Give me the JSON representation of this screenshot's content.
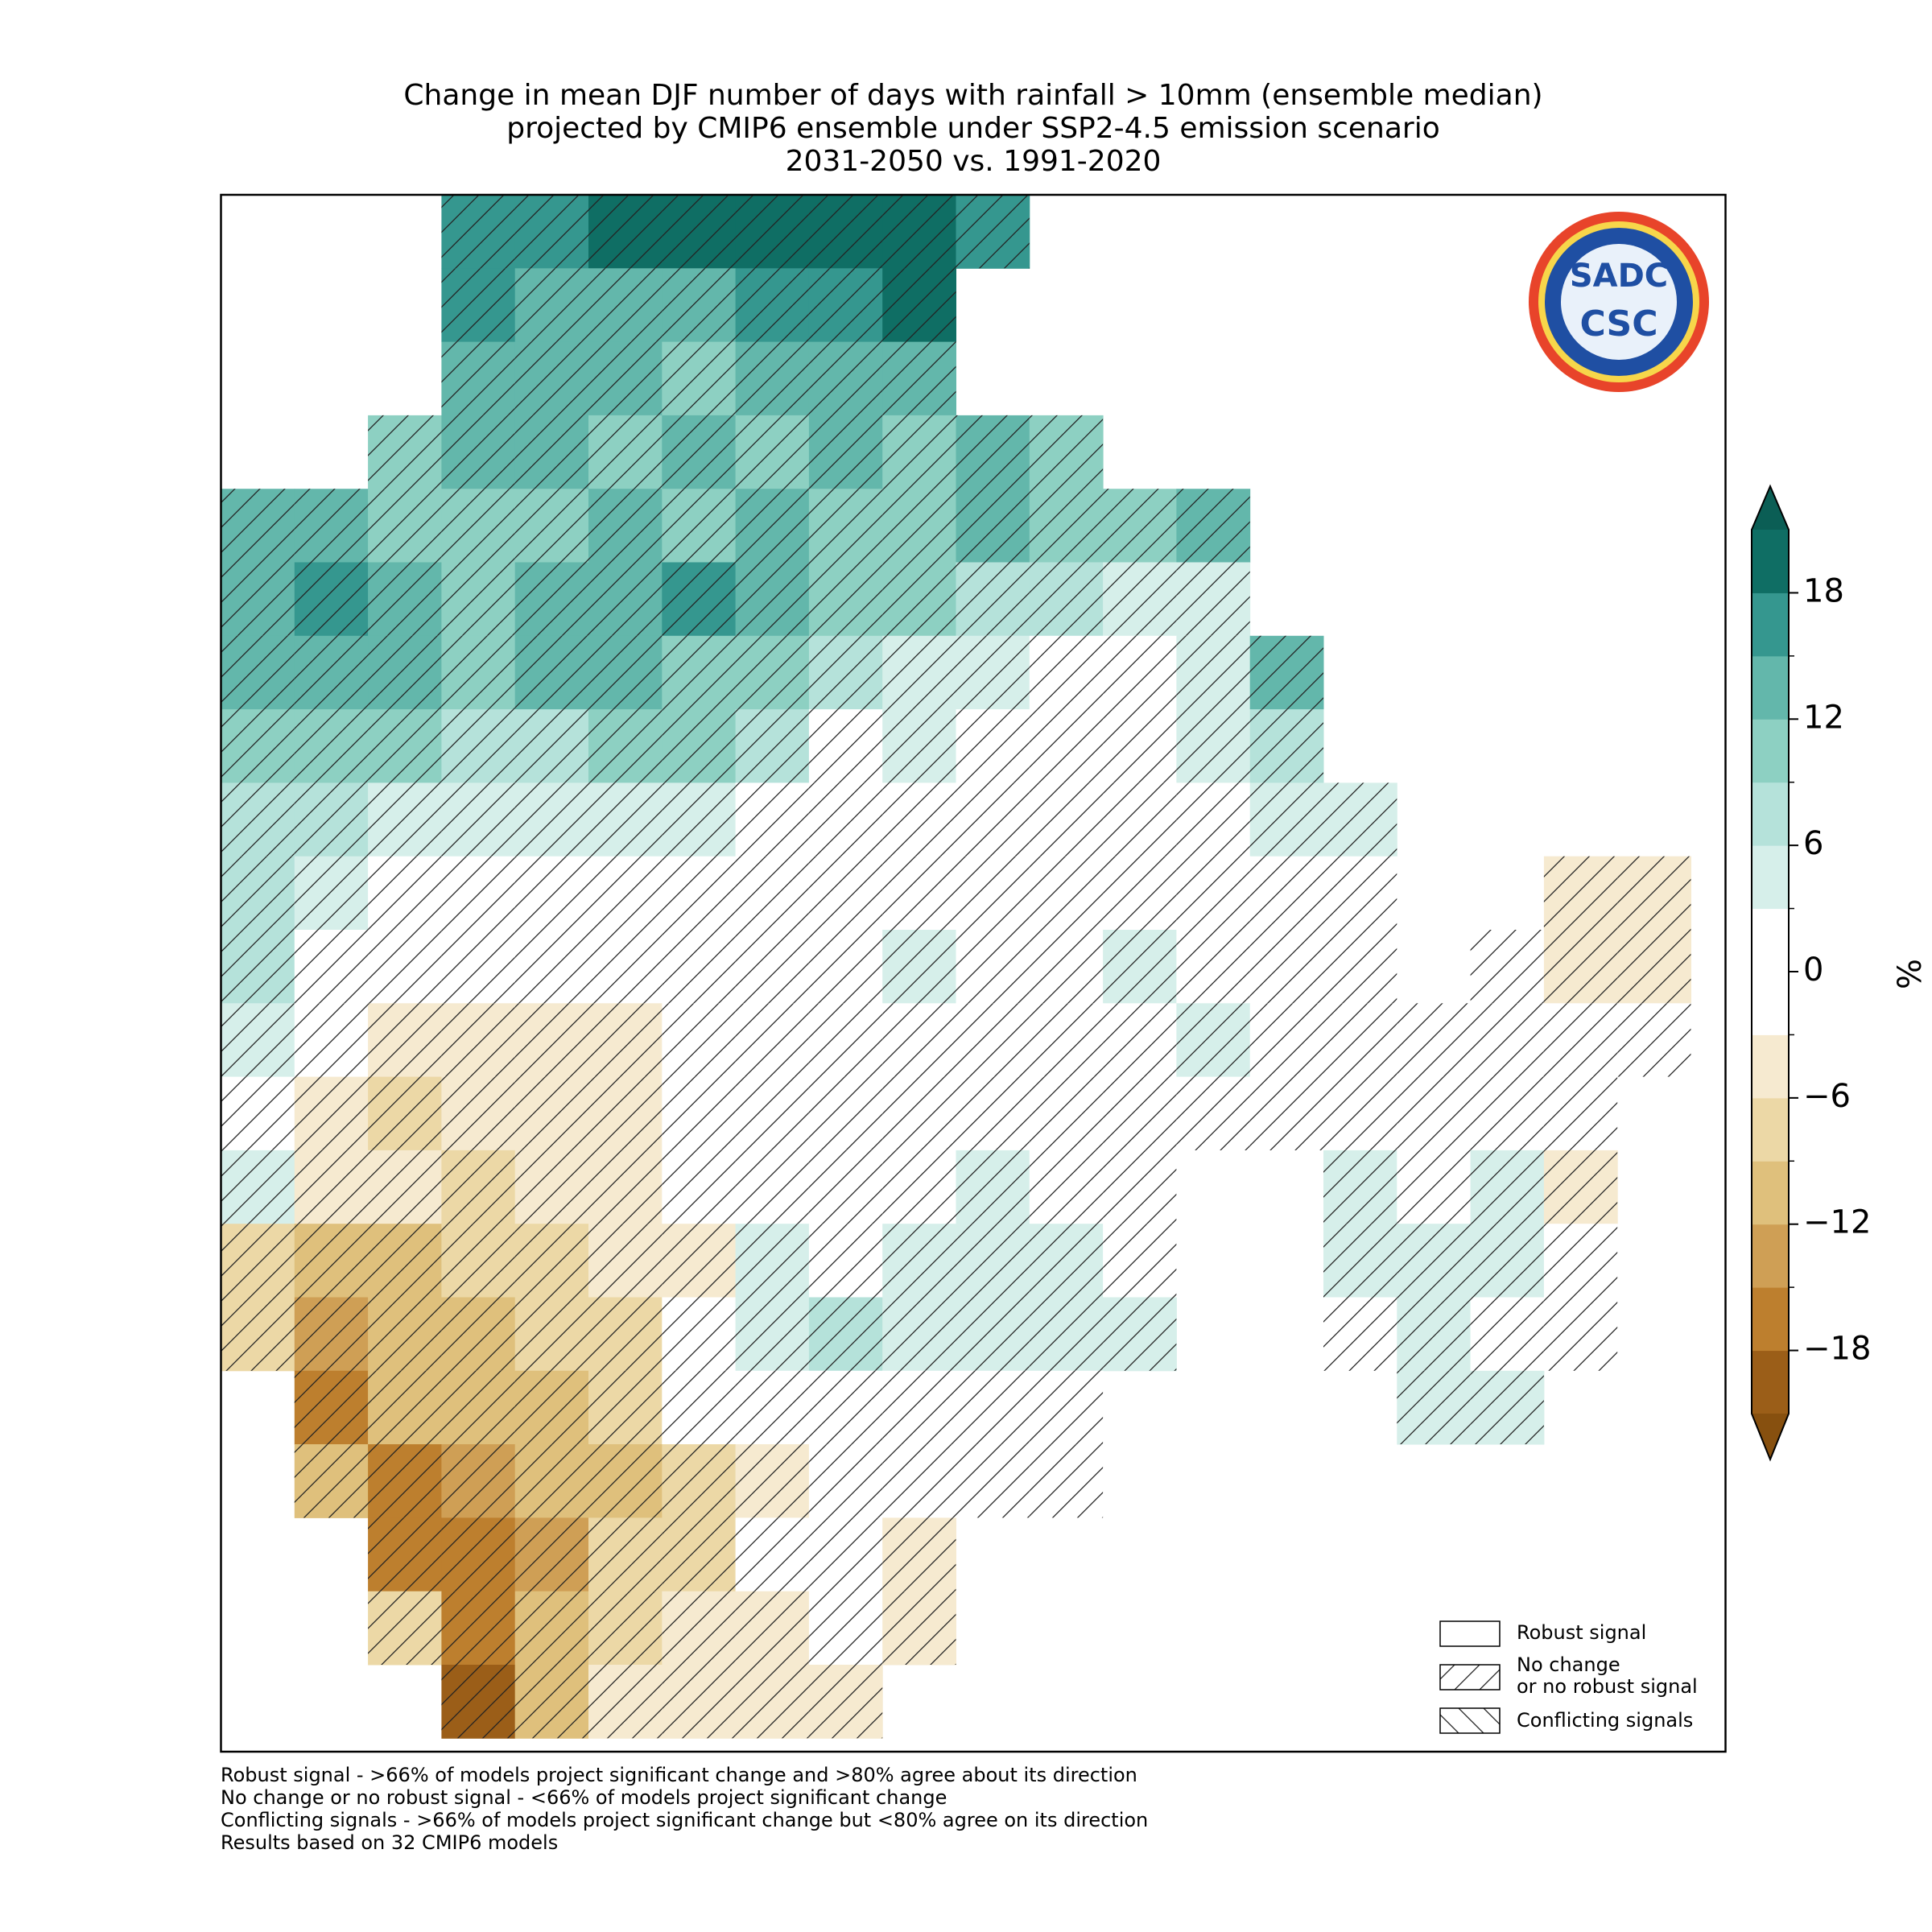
{
  "chart_data": {
    "type": "grid_map",
    "title": [
      "Change in mean DJF number of days with rainfall > 10mm (ensemble median)",
      "projected by CMIP6 ensemble under SSP2-4.5 emission scenario",
      "2031-2050 vs. 1991-2020"
    ],
    "cells": [
      [
        null,
        null,
        null,
        16.5,
        16.5,
        19.5,
        19.5,
        19.5,
        19.5,
        19.5,
        16.5,
        null,
        null,
        null,
        null,
        null,
        null,
        null,
        null,
        null
      ],
      [
        null,
        null,
        null,
        16.5,
        13.5,
        13.5,
        13.5,
        16.5,
        16.5,
        19.5,
        null,
        null,
        null,
        null,
        null,
        null,
        null,
        null,
        null,
        null
      ],
      [
        null,
        null,
        null,
        13.5,
        13.5,
        13.5,
        10.5,
        13.5,
        13.5,
        13.5,
        null,
        null,
        null,
        null,
        null,
        null,
        null,
        null,
        null,
        null
      ],
      [
        null,
        null,
        10.5,
        13.5,
        13.5,
        10.5,
        13.5,
        10.5,
        13.5,
        10.5,
        13.5,
        10.5,
        null,
        null,
        null,
        null,
        null,
        null,
        null,
        null
      ],
      [
        13.5,
        13.5,
        10.5,
        10.5,
        10.5,
        13.5,
        10.5,
        13.5,
        10.5,
        10.5,
        13.5,
        10.5,
        10.5,
        13.5,
        null,
        null,
        null,
        null,
        null,
        null
      ],
      [
        13.5,
        16.5,
        13.5,
        10.5,
        13.5,
        13.5,
        16.5,
        13.5,
        10.5,
        10.5,
        7.5,
        7.5,
        4.5,
        4.5,
        null,
        null,
        null,
        null,
        null,
        null
      ],
      [
        13.5,
        13.5,
        13.5,
        10.5,
        13.5,
        13.5,
        10.5,
        10.5,
        7.5,
        4.5,
        4.5,
        0,
        0,
        4.5,
        13.5,
        null,
        null,
        null,
        null,
        null
      ],
      [
        10.5,
        10.5,
        10.5,
        7.5,
        7.5,
        10.5,
        10.5,
        7.5,
        0,
        4.5,
        0,
        0,
        0,
        4.5,
        7.5,
        null,
        null,
        null,
        null,
        null
      ],
      [
        7.5,
        7.5,
        4.5,
        4.5,
        4.5,
        4.5,
        4.5,
        0,
        0,
        0,
        0,
        0,
        0,
        0,
        4.5,
        4.5,
        null,
        null,
        null,
        null
      ],
      [
        7.5,
        4.5,
        0,
        0,
        0,
        0,
        0,
        0,
        0,
        0,
        0,
        0,
        0,
        0,
        0,
        0,
        null,
        null,
        -4.5,
        -4.5
      ],
      [
        7.5,
        0,
        0,
        0,
        0,
        0,
        0,
        0,
        0,
        4.5,
        0,
        0,
        4.5,
        0,
        0,
        0,
        null,
        0,
        -4.5,
        -4.5
      ],
      [
        4.5,
        0,
        -4.5,
        -4.5,
        -4.5,
        -4.5,
        0,
        0,
        0,
        0,
        0,
        0,
        0,
        4.5,
        0,
        0,
        0,
        0,
        0,
        0
      ],
      [
        0,
        -4.5,
        -7.5,
        -4.5,
        -4.5,
        -4.5,
        0,
        0,
        0,
        0,
        0,
        0,
        0,
        0,
        0,
        0,
        0,
        0,
        0,
        null
      ],
      [
        4.5,
        -4.5,
        -4.5,
        -7.5,
        -4.5,
        -4.5,
        0,
        0,
        0,
        0,
        4.5,
        0,
        0,
        null,
        null,
        4.5,
        0,
        4.5,
        -4.5,
        null
      ],
      [
        -7.5,
        -10.5,
        -10.5,
        -7.5,
        -7.5,
        -4.5,
        -4.5,
        4.5,
        0,
        4.5,
        4.5,
        4.5,
        0,
        null,
        null,
        4.5,
        4.5,
        4.5,
        0,
        null
      ],
      [
        -7.5,
        -13.5,
        -10.5,
        -10.5,
        -7.5,
        -7.5,
        0,
        4.5,
        7.5,
        4.5,
        4.5,
        4.5,
        4.5,
        null,
        null,
        0,
        4.5,
        0,
        0,
        null
      ],
      [
        null,
        -16.5,
        -10.5,
        -10.5,
        -10.5,
        -7.5,
        0,
        0,
        0,
        0,
        0,
        0,
        null,
        null,
        null,
        null,
        4.5,
        4.5,
        null,
        null
      ],
      [
        null,
        -10.5,
        -16.5,
        -13.5,
        -10.5,
        -10.5,
        -7.5,
        -4.5,
        0,
        0,
        0,
        0,
        null,
        null,
        null,
        null,
        null,
        null,
        null,
        null
      ],
      [
        null,
        null,
        -16.5,
        -16.5,
        -13.5,
        -7.5,
        -7.5,
        0,
        0,
        -4.5,
        null,
        null,
        null,
        null,
        null,
        null,
        null,
        null,
        null,
        null
      ],
      [
        null,
        null,
        -7.5,
        -16.5,
        -10.5,
        -7.5,
        -4.5,
        -4.5,
        0,
        -4.5,
        null,
        null,
        null,
        null,
        null,
        null,
        null,
        null,
        null,
        null
      ],
      [
        null,
        null,
        null,
        -19.5,
        -10.5,
        -4.5,
        -4.5,
        -4.5,
        -4.5,
        null,
        null,
        null,
        null,
        null,
        null,
        null,
        null,
        null,
        null,
        null
      ]
    ],
    "colorbar": {
      "label": "%",
      "levels": [
        -21,
        -18,
        -15,
        -12,
        -9,
        -6,
        -3,
        3,
        6,
        9,
        12,
        15,
        18,
        21
      ],
      "colors": [
        "#9b5e18",
        "#bd7f2e",
        "#cf9f55",
        "#dfc07c",
        "#ecd8a6",
        "#f6ead0",
        "#ffffff",
        "#d6efea",
        "#b5e2da",
        "#8dd0c2",
        "#63b7ab",
        "#35978f",
        "#0f6e64"
      ],
      "under_color": "#87500f",
      "over_color": "#0b5e55",
      "ticks": [
        {
          "value": -18,
          "label": "−18"
        },
        {
          "value": -12,
          "label": "−12"
        },
        {
          "value": -6,
          "label": "−6"
        },
        0,
        6,
        12,
        18
      ]
    }
  },
  "legend": [
    [
      "Robust signal"
    ],
    [
      "No change",
      "or no robust signal"
    ],
    [
      "Conflicting signals"
    ]
  ],
  "logo": [
    "SADC",
    "CSC"
  ],
  "notes": [
    "Robust signal - >66% of models project significant change and >80% agree about its direction",
    "No change or no robust signal - <66% of models project significant change",
    "Conflicting signals - >66% of models project significant change but <80% agree on its direction",
    "Results based on 32 CMIP6 models"
  ]
}
